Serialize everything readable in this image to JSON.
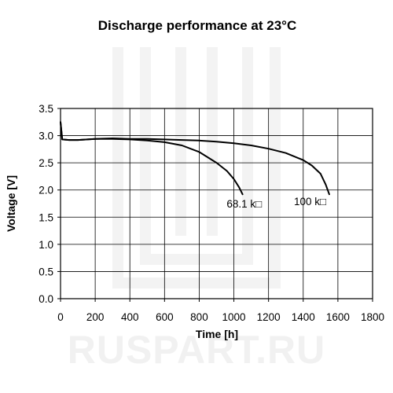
{
  "chart_data": {
    "type": "line",
    "title": "Discharge performance at 23°C",
    "xlabel": "Time [h]",
    "ylabel": "Voltage [V]",
    "xlim": [
      0,
      1800
    ],
    "ylim": [
      0.0,
      3.5
    ],
    "xticks": [
      0,
      200,
      400,
      600,
      800,
      1000,
      1200,
      1400,
      1600,
      1800
    ],
    "yticks": [
      0.0,
      0.5,
      1.0,
      1.5,
      2.0,
      2.5,
      3.0,
      3.5
    ],
    "xtick_labels": [
      "0",
      "200",
      "400",
      "600",
      "800",
      "1000",
      "1200",
      "1400",
      "1600",
      "1800"
    ],
    "ytick_labels": [
      "0.0",
      "0.5",
      "1.0",
      "1.5",
      "2.0",
      "2.5",
      "3.0",
      "3.5"
    ],
    "grid": true,
    "legend": "none",
    "series": [
      {
        "name": "68.1 k□",
        "points": [
          [
            0,
            3.25
          ],
          [
            10,
            2.93
          ],
          [
            50,
            2.92
          ],
          [
            100,
            2.92
          ],
          [
            200,
            2.94
          ],
          [
            300,
            2.94
          ],
          [
            400,
            2.93
          ],
          [
            500,
            2.91
          ],
          [
            600,
            2.88
          ],
          [
            700,
            2.82
          ],
          [
            800,
            2.7
          ],
          [
            900,
            2.5
          ],
          [
            960,
            2.35
          ],
          [
            1000,
            2.2
          ],
          [
            1030,
            2.05
          ],
          [
            1050,
            1.92
          ]
        ]
      },
      {
        "name": "100 k□",
        "points": [
          [
            0,
            3.25
          ],
          [
            10,
            2.93
          ],
          [
            50,
            2.92
          ],
          [
            100,
            2.92
          ],
          [
            200,
            2.94
          ],
          [
            300,
            2.95
          ],
          [
            400,
            2.94
          ],
          [
            500,
            2.94
          ],
          [
            600,
            2.93
          ],
          [
            700,
            2.92
          ],
          [
            800,
            2.91
          ],
          [
            900,
            2.89
          ],
          [
            1000,
            2.86
          ],
          [
            1100,
            2.82
          ],
          [
            1200,
            2.76
          ],
          [
            1300,
            2.68
          ],
          [
            1400,
            2.55
          ],
          [
            1450,
            2.45
          ],
          [
            1500,
            2.3
          ],
          [
            1530,
            2.1
          ],
          [
            1550,
            1.92
          ]
        ]
      }
    ],
    "label_positions": [
      [
        1060,
        1.68
      ],
      [
        1440,
        1.72
      ]
    ],
    "line_color": "#000000",
    "grid_color": "#000000"
  },
  "watermark": {
    "text": "RUSPART.RU"
  }
}
